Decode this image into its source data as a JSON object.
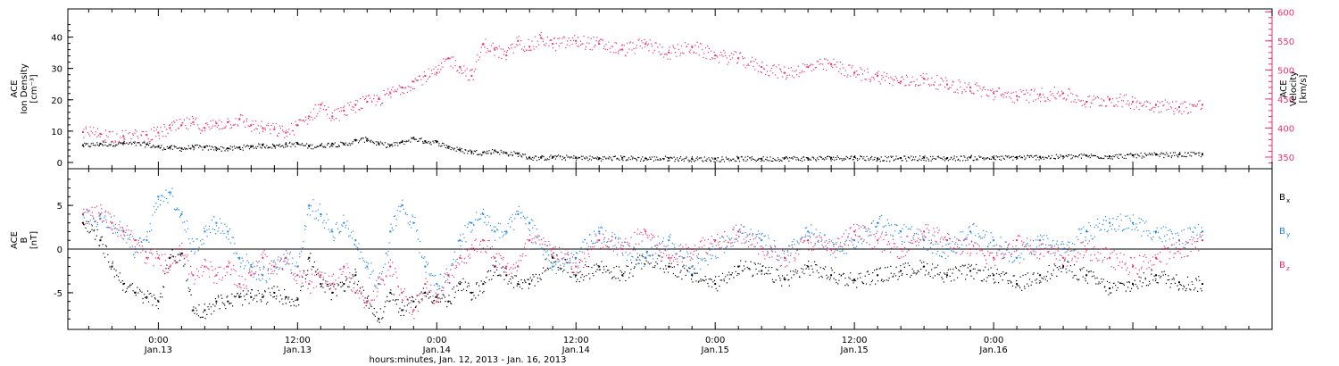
{
  "chart_data": [
    {
      "type": "scatter",
      "panel": "top",
      "ylabel_left_lines": [
        "ACE",
        "Ion Density",
        "[cm⁻³]"
      ],
      "ylabel_right_lines": [
        "ACE",
        "Velocity",
        "[km/s]"
      ],
      "ylim_left": [
        -2,
        49
      ],
      "ylim_right": [
        330,
        605
      ],
      "yticks_left": [
        "0",
        "10",
        "20",
        "30",
        "40"
      ],
      "yticks_left_values": [
        0,
        10,
        20,
        30,
        40
      ],
      "yticks_right": [
        "350",
        "400",
        "450",
        "500",
        "550",
        "600"
      ],
      "yticks_right_values": [
        350,
        400,
        450,
        500,
        550,
        600
      ],
      "colors": {
        "density": "#000000",
        "velocity": "#e8336b"
      },
      "series": [
        {
          "axis": "left",
          "x": [
            -6.5,
            -5,
            -3,
            -1,
            0,
            1,
            2,
            3,
            4,
            5,
            6,
            7,
            8,
            9,
            10,
            11,
            12,
            13,
            14,
            15,
            16,
            17,
            18,
            19,
            20,
            21,
            22,
            23,
            24,
            25,
            26,
            27,
            28,
            29,
            30,
            31,
            32,
            33,
            34,
            36,
            38,
            40,
            42,
            44,
            46,
            48,
            50,
            52,
            54,
            56,
            58,
            60,
            62,
            64,
            66,
            68,
            70,
            72,
            74,
            76,
            78,
            80,
            82,
            84,
            86,
            88,
            90
          ],
          "values": [
            5.5,
            6,
            6.2,
            5.8,
            5,
            4.8,
            4.5,
            5,
            4.8,
            4.6,
            4.5,
            4.8,
            5.2,
            5.5,
            5.3,
            5.8,
            6,
            5.2,
            5.5,
            6,
            5.8,
            7,
            7.5,
            6,
            5.5,
            6.5,
            7.8,
            6.8,
            6.5,
            5,
            4,
            3.5,
            3.2,
            3.8,
            3,
            2.8,
            1.6,
            1.5,
            1.8,
            1.6,
            1.4,
            1.5,
            1.3,
            1.4,
            1.2,
            1.2,
            1.3,
            1.2,
            1.4,
            1.3,
            1.5,
            1.7,
            1.3,
            1.4,
            1.5,
            1.4,
            1.6,
            1.5,
            1.7,
            1.8,
            1.9,
            2.2,
            2,
            2.3,
            2.5,
            2.6,
            2.7
          ]
        },
        {
          "axis": "right",
          "x": [
            -6.5,
            -5,
            -3,
            -1,
            0,
            1,
            2,
            3,
            4,
            5,
            6,
            7,
            8,
            9,
            10,
            11,
            12,
            13,
            14,
            15,
            16,
            17,
            18,
            19,
            20,
            21,
            22,
            23,
            24,
            25,
            26,
            27,
            28,
            29,
            30,
            31,
            32,
            33,
            34,
            36,
            38,
            40,
            42,
            44,
            46,
            48,
            50,
            52,
            54,
            56,
            58,
            60,
            62,
            64,
            66,
            68,
            70,
            72,
            74,
            76,
            78,
            80,
            82,
            84,
            86,
            88,
            90
          ],
          "values": [
            393,
            390,
            385,
            388,
            392,
            400,
            405,
            410,
            400,
            408,
            410,
            415,
            405,
            400,
            398,
            392,
            405,
            420,
            440,
            420,
            430,
            440,
            445,
            450,
            460,
            470,
            480,
            490,
            495,
            520,
            505,
            490,
            545,
            535,
            525,
            550,
            540,
            555,
            545,
            550,
            545,
            535,
            545,
            530,
            540,
            525,
            520,
            505,
            495,
            505,
            510,
            495,
            490,
            480,
            485,
            475,
            470,
            460,
            455,
            458,
            460,
            445,
            450,
            445,
            440,
            436,
            440
          ]
        }
      ]
    },
    {
      "type": "scatter",
      "panel": "bottom",
      "ylabel_lines": [
        "ACE",
        "B",
        "[nT]"
      ],
      "ylim": [
        -9.2,
        9.2
      ],
      "yticks": [
        "-5",
        "0",
        "5"
      ],
      "yticks_values": [
        -5,
        0,
        5
      ],
      "legend": [
        {
          "label": "B",
          "sub": "x",
          "color": "#000000"
        },
        {
          "label": "B",
          "sub": "y",
          "color": "#1e88e5"
        },
        {
          "label": "B",
          "sub": "z",
          "color": "#e8336b"
        }
      ],
      "colors": {
        "bx": "#000000",
        "by": "#1e88e5",
        "bz": "#e8336b"
      },
      "series": [
        {
          "name": "Bx",
          "x": [
            -6.5,
            -5,
            -4,
            -3,
            -2,
            -1,
            0,
            1,
            2,
            3,
            4,
            5,
            6,
            7,
            8,
            9,
            10,
            11,
            12,
            13,
            14,
            15,
            16,
            17,
            18,
            19,
            20,
            21,
            22,
            23,
            24,
            25,
            26,
            27,
            28,
            29,
            30,
            31,
            32,
            34,
            36,
            38,
            40,
            42,
            44,
            46,
            48,
            50,
            52,
            54,
            56,
            58,
            60,
            62,
            64,
            66,
            68,
            70,
            72,
            74,
            76,
            78,
            80,
            82,
            84,
            86,
            88,
            90
          ],
          "values": [
            3,
            1,
            -2,
            -4,
            -5,
            -5.5,
            -6,
            -1,
            -0.5,
            -7,
            -7,
            -6,
            -6,
            -5.5,
            -5.5,
            -5.5,
            -5,
            -5.5,
            -5.8,
            -1,
            -4,
            -5,
            -4,
            -3,
            -6,
            -8,
            -5,
            -7,
            -6,
            -5,
            -5.5,
            -6,
            -4,
            -5,
            -4,
            -2,
            -3,
            -4,
            -4,
            -1,
            -3,
            -2,
            -3,
            -1,
            -2,
            -3,
            -4,
            -2,
            -2.5,
            -3.5,
            -2,
            -3,
            -3.5,
            -3,
            -2.5,
            -2,
            -3,
            -2.5,
            -3,
            -4,
            -3,
            -2,
            -3,
            -4.5,
            -4,
            -3,
            -3.8,
            -4
          ]
        },
        {
          "name": "By",
          "x": [
            -6.5,
            -5,
            -4,
            -3,
            -2,
            -1,
            0,
            1,
            2,
            3,
            4,
            5,
            6,
            7,
            8,
            9,
            10,
            11,
            12,
            13,
            14,
            15,
            16,
            17,
            18,
            19,
            20,
            21,
            22,
            23,
            24,
            25,
            26,
            27,
            28,
            29,
            30,
            31,
            32,
            34,
            36,
            38,
            40,
            42,
            44,
            46,
            48,
            50,
            52,
            54,
            56,
            58,
            60,
            62,
            64,
            66,
            68,
            70,
            72,
            74,
            76,
            78,
            80,
            82,
            84,
            86,
            88,
            90
          ],
          "values": [
            4,
            3.5,
            3,
            2,
            0,
            1,
            6,
            6.5,
            4,
            0,
            2,
            3,
            2,
            -1,
            -2,
            -3,
            -2,
            -1,
            -2,
            5,
            4,
            2,
            3,
            1,
            -2,
            -4,
            2,
            5,
            3,
            -2,
            -4,
            -3,
            1,
            3,
            4,
            2,
            2,
            4,
            3,
            -2,
            -1,
            2,
            0,
            -1,
            1,
            -2,
            0,
            2,
            1,
            -1,
            2,
            0,
            1,
            3,
            2,
            1,
            0,
            2,
            1,
            -1,
            1,
            0,
            2,
            3,
            3,
            2,
            1,
            2
          ]
        },
        {
          "name": "Bz",
          "x": [
            -6.5,
            -5,
            -4,
            -3,
            -2,
            -1,
            0,
            1,
            2,
            3,
            4,
            5,
            6,
            7,
            8,
            9,
            10,
            11,
            12,
            13,
            14,
            15,
            16,
            17,
            18,
            19,
            20,
            21,
            22,
            23,
            24,
            25,
            26,
            27,
            28,
            29,
            30,
            31,
            32,
            34,
            36,
            38,
            40,
            42,
            44,
            46,
            48,
            50,
            52,
            54,
            56,
            58,
            60,
            62,
            64,
            66,
            68,
            70,
            72,
            74,
            76,
            78,
            80,
            82,
            84,
            86,
            88,
            90
          ],
          "values": [
            4,
            4,
            3,
            2,
            1,
            -1,
            -1,
            -2,
            0,
            -3,
            -2,
            -3,
            -2,
            -4,
            -3,
            -1,
            -2,
            -1,
            -3,
            -4,
            -3,
            -4,
            -2,
            -5,
            -6,
            -4,
            -2,
            -5,
            -7,
            -4,
            -6,
            -3,
            -1,
            0,
            1,
            -1,
            -2,
            -2,
            1,
            0,
            -2,
            1,
            0,
            2,
            -1,
            0,
            1,
            2,
            0,
            -1,
            1,
            0,
            2,
            1,
            0,
            2,
            1,
            0,
            -1,
            1,
            0,
            -1,
            0,
            -1,
            -2,
            -1,
            0,
            1
          ]
        }
      ]
    }
  ],
  "xaxis": {
    "xlim": [
      -7.8,
      96
    ],
    "ticks": [
      {
        "x": 0,
        "time": "0:00",
        "day": "Jan.13"
      },
      {
        "x": 12,
        "time": "12:00",
        "day": "Jan.13"
      },
      {
        "x": 24,
        "time": "0:00",
        "day": "Jan.14"
      },
      {
        "x": 36,
        "time": "12:00",
        "day": "Jan.14"
      },
      {
        "x": 48,
        "time": "0:00",
        "day": "Jan.15"
      },
      {
        "x": 60,
        "time": "12:00",
        "day": "Jan.15"
      },
      {
        "x": 72,
        "time": "0:00",
        "day": "Jan.16"
      }
    ],
    "label": "hours:minutes, Jan. 12, 2013 - Jan. 16, 2013"
  }
}
